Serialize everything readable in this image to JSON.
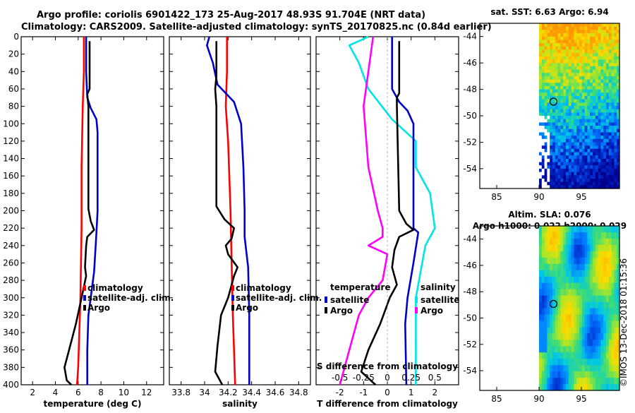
{
  "title": {
    "line1": "Argo profile: coriolis 6901422_173 25-Aug-2017 48.93S 91.704E (NRT data)",
    "line2": "Climatology: CARS2009. Satellite-adjusted climatology: synTS_20170825.nc (0.84d earlier)"
  },
  "footer": "©IMOS 13-Dec-2018 01:15:36",
  "colors": {
    "argo": "#000000",
    "climatology": "#ff0000",
    "satellite": "#0000cc",
    "sal_diff": "#ff00ff",
    "temp_diff_sat": "#00e5e5"
  },
  "chart_data": [
    {
      "type": "line",
      "name": "temperature",
      "xlabel": "temperature (deg C)",
      "xlim": [
        1,
        13.5
      ],
      "xticks": [
        2,
        4,
        6,
        8,
        10,
        12
      ],
      "ylim": [
        400,
        0
      ],
      "yticks": [
        0,
        20,
        40,
        60,
        80,
        100,
        120,
        140,
        160,
        180,
        200,
        220,
        240,
        260,
        280,
        300,
        320,
        340,
        360,
        380,
        400
      ],
      "legend": [
        "climatology",
        "satellite-adj. clim.",
        "Argo"
      ],
      "series": [
        {
          "name": "climatology",
          "color": "#ff0000",
          "points": [
            [
              6.5,
              0
            ],
            [
              6.5,
              40
            ],
            [
              6.4,
              80
            ],
            [
              6.3,
              150
            ],
            [
              6.3,
              220
            ],
            [
              6.2,
              300
            ],
            [
              6.1,
              340
            ],
            [
              6.0,
              380
            ],
            [
              5.9,
              400
            ]
          ]
        },
        {
          "name": "satellite-adj. clim.",
          "color": "#0000cc",
          "points": [
            [
              6.7,
              0
            ],
            [
              6.7,
              40
            ],
            [
              6.8,
              70
            ],
            [
              7.1,
              82
            ],
            [
              7.6,
              95
            ],
            [
              7.7,
              110
            ],
            [
              7.7,
              200
            ],
            [
              7.6,
              225
            ],
            [
              7.4,
              270
            ],
            [
              7.1,
              300
            ],
            [
              6.9,
              320
            ],
            [
              6.8,
              360
            ],
            [
              6.8,
              400
            ]
          ]
        },
        {
          "name": "Argo",
          "color": "#000000",
          "points": [
            [
              7.0,
              5
            ],
            [
              7.0,
              60
            ],
            [
              6.8,
              66
            ],
            [
              6.9,
              80
            ],
            [
              6.9,
              198
            ],
            [
              7.1,
              212
            ],
            [
              7.4,
              222
            ],
            [
              6.8,
              230
            ],
            [
              6.7,
              240
            ],
            [
              6.6,
              265
            ],
            [
              6.7,
              275
            ],
            [
              6.3,
              300
            ],
            [
              5.8,
              330
            ],
            [
              5.2,
              360
            ],
            [
              4.8,
              380
            ],
            [
              5.0,
              395
            ],
            [
              5.4,
              400
            ]
          ]
        }
      ]
    },
    {
      "type": "line",
      "name": "salinity",
      "xlabel": "salinity",
      "xlim": [
        33.7,
        34.9
      ],
      "xticks": [
        "33.8",
        "34",
        "34.2",
        "34.4",
        "34.6",
        "34.8"
      ],
      "xtick_values": [
        33.8,
        34.0,
        34.2,
        34.4,
        34.6,
        34.8
      ],
      "ylim": [
        400,
        0
      ],
      "legend": [
        "climatology",
        "satellite-adj. clim.",
        "Argo"
      ],
      "series": [
        {
          "name": "climatology",
          "color": "#ff0000",
          "points": [
            [
              34.19,
              0
            ],
            [
              34.19,
              40
            ],
            [
              34.18,
              80
            ],
            [
              34.2,
              120
            ],
            [
              34.22,
              200
            ],
            [
              34.23,
              260
            ],
            [
              34.24,
              320
            ],
            [
              34.26,
              400
            ]
          ]
        },
        {
          "name": "satellite-adj. clim.",
          "color": "#0000cc",
          "points": [
            [
              34.04,
              0
            ],
            [
              34.02,
              10
            ],
            [
              34.07,
              30
            ],
            [
              34.11,
              55
            ],
            [
              34.25,
              75
            ],
            [
              34.31,
              100
            ],
            [
              34.33,
              150
            ],
            [
              34.34,
              200
            ],
            [
              34.34,
              230
            ],
            [
              34.37,
              265
            ],
            [
              34.38,
              320
            ],
            [
              34.38,
              400
            ]
          ]
        },
        {
          "name": "Argo",
          "color": "#000000",
          "points": [
            [
              34.1,
              5
            ],
            [
              34.1,
              45
            ],
            [
              34.09,
              60
            ],
            [
              34.1,
              80
            ],
            [
              34.1,
              195
            ],
            [
              34.17,
              210
            ],
            [
              34.25,
              220
            ],
            [
              34.23,
              232
            ],
            [
              34.18,
              240
            ],
            [
              34.2,
              250
            ],
            [
              34.28,
              265
            ],
            [
              34.25,
              275
            ],
            [
              34.2,
              300
            ],
            [
              34.14,
              320
            ],
            [
              34.11,
              355
            ],
            [
              34.09,
              385
            ],
            [
              34.15,
              400
            ]
          ]
        }
      ]
    },
    {
      "type": "line",
      "name": "difference",
      "xlabel": "T difference from climatology",
      "xlabel2": "S difference from climatology",
      "xlim": [
        -3,
        3
      ],
      "xticks": [
        "-2",
        "-1",
        "0",
        "1",
        "2"
      ],
      "xtick_values": [
        -2,
        -1,
        0,
        1,
        2
      ],
      "xticks2": [
        "-0.5",
        "-0.25",
        "0",
        "0.25",
        "0.5"
      ],
      "xtick2_values": [
        -0.5,
        -0.25,
        0,
        0.25,
        0.5
      ],
      "ylim": [
        400,
        0
      ],
      "legend_left_title": "temperature",
      "legend_right_title": "salinity",
      "legend_left": [
        "satellite",
        "Argo"
      ],
      "legend_right": [
        "satellite",
        "Argo"
      ],
      "series": [
        {
          "name": "S diff satellite",
          "color": "#00e5e5",
          "points": [
            [
              -0.2,
              0
            ],
            [
              -0.4,
              10
            ],
            [
              -0.3,
              30
            ],
            [
              -0.2,
              60
            ],
            [
              0.05,
              95
            ],
            [
              0.3,
              120
            ],
            [
              0.3,
              150
            ],
            [
              0.45,
              180
            ],
            [
              0.5,
              220
            ],
            [
              0.4,
              240
            ],
            [
              0.3,
              300
            ],
            [
              0.3,
              400
            ]
          ]
        },
        {
          "name": "S diff Argo",
          "color": "#ff00ff",
          "points": [
            [
              -0.15,
              0
            ],
            [
              -0.2,
              40
            ],
            [
              -0.25,
              80
            ],
            [
              -0.2,
              150
            ],
            [
              -0.1,
              200
            ],
            [
              -0.05,
              220
            ],
            [
              -0.05,
              230
            ],
            [
              -0.2,
              240
            ],
            [
              0.0,
              250
            ],
            [
              -0.05,
              280
            ],
            [
              -0.2,
              300
            ],
            [
              -0.3,
              320
            ],
            [
              -0.4,
              360
            ],
            [
              -0.5,
              400
            ]
          ]
        },
        {
          "name": "T diff satellite",
          "color": "#0000cc",
          "points": [
            [
              0.2,
              0
            ],
            [
              0.2,
              60
            ],
            [
              0.5,
              75
            ],
            [
              0.85,
              85
            ],
            [
              1.1,
              100
            ],
            [
              1.1,
              220
            ],
            [
              1.3,
              225
            ],
            [
              1.1,
              260
            ],
            [
              0.85,
              300
            ],
            [
              0.75,
              330
            ],
            [
              0.8,
              400
            ]
          ]
        },
        {
          "name": "T diff Argo",
          "color": "#000000",
          "points": [
            [
              0.5,
              5
            ],
            [
              0.5,
              65
            ],
            [
              0.4,
              70
            ],
            [
              0.4,
              80
            ],
            [
              0.5,
              200
            ],
            [
              0.8,
              215
            ],
            [
              1.1,
              222
            ],
            [
              0.5,
              230
            ],
            [
              0.3,
              245
            ],
            [
              0.2,
              265
            ],
            [
              0.4,
              285
            ],
            [
              0.1,
              300
            ],
            [
              -0.3,
              330
            ],
            [
              -0.8,
              360
            ],
            [
              -1.1,
              385
            ],
            [
              -0.5,
              400
            ]
          ]
        }
      ]
    },
    {
      "type": "heatmap",
      "name": "sst_map",
      "title": "sat. SST: 6.63 Argo: 6.94",
      "xlim": [
        83,
        99.5
      ],
      "ylim": [
        -55.5,
        -43
      ],
      "xticks": [
        "85",
        "90",
        "95"
      ],
      "xtick_values": [
        85,
        90,
        95
      ],
      "yticks": [
        "-44",
        "-46",
        "-48",
        "-50",
        "-52",
        "-54"
      ],
      "ytick_values": [
        -44,
        -46,
        -48,
        -50,
        -52,
        -54
      ],
      "argo_position": [
        91.704,
        -48.93
      ]
    },
    {
      "type": "heatmap",
      "name": "sla_map",
      "title": "Altim. SLA: 0.076",
      "subtitle": "Argo h1000: 0.022 h2000: 0.029",
      "xlim": [
        83,
        99.5
      ],
      "ylim": [
        -55.5,
        -43
      ],
      "xticks": [
        "85",
        "90",
        "95"
      ],
      "xtick_values": [
        85,
        90,
        95
      ],
      "yticks": [
        "-44",
        "-46",
        "-48",
        "-50",
        "-52",
        "-54"
      ],
      "ytick_values": [
        -44,
        -46,
        -48,
        -50,
        -52,
        -54
      ],
      "argo_position": [
        91.704,
        -48.93
      ]
    }
  ]
}
